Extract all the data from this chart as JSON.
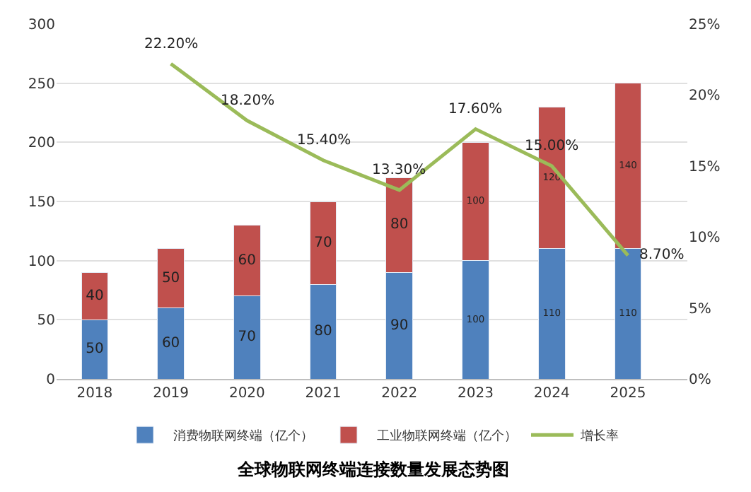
{
  "chart_data": {
    "type": "bar",
    "title": "全球物联网终端连接数量发展态势图",
    "categories": [
      "2018",
      "2019",
      "2020",
      "2021",
      "2022",
      "2023",
      "2024",
      "2025"
    ],
    "stacked": true,
    "data_labels": true,
    "grid": "y",
    "legend": "bottom",
    "marker": "none",
    "series": [
      {
        "name": "消费物联网终端（亿个）",
        "color": "#4f81bd",
        "values": [
          50,
          60,
          70,
          80,
          90,
          100,
          110,
          110
        ]
      },
      {
        "name": "工业物联网终端（亿个）",
        "color": "#c0504d",
        "values": [
          40,
          50,
          60,
          70,
          80,
          100,
          120,
          140
        ]
      },
      {
        "name": "增长率",
        "type": "line",
        "axis": "y2",
        "color": "#9bbb59",
        "values": [
          null,
          22.2,
          18.2,
          15.4,
          13.3,
          17.6,
          15.0,
          8.7
        ],
        "value_labels": [
          null,
          "22.20%",
          "18.20%",
          "15.40%",
          "13.30%",
          "17.60%",
          "15.00%",
          "8.70%"
        ]
      }
    ],
    "ylim": [
      0,
      300
    ],
    "yticks": [
      0,
      50,
      100,
      150,
      200,
      250,
      300
    ],
    "y2lim": [
      0,
      25
    ],
    "y2ticks": [
      {
        "value": 0,
        "label": "0%"
      },
      {
        "value": 5,
        "label": "5%"
      },
      {
        "value": 10,
        "label": "10%"
      },
      {
        "value": 15,
        "label": "15%"
      },
      {
        "value": 20,
        "label": "20%"
      },
      {
        "value": 25,
        "label": "25%"
      }
    ]
  }
}
